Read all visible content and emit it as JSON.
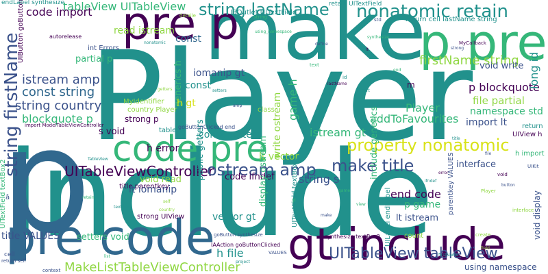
{
  "palette": {
    "purple": "#440154",
    "indigo": "#3b528b",
    "blue": "#31688e",
    "teal": "#21918c",
    "green": "#35b779",
    "lime": "#90d743",
    "yellow": "#d8e219"
  },
  "words": [
    {
      "text": "Player",
      "color": "teal"
    },
    {
      "text": "include",
      "color": "teal"
    },
    {
      "text": "make",
      "color": "teal"
    },
    {
      "text": "p",
      "color": "blue"
    },
    {
      "text": "pre p",
      "color": "purple"
    },
    {
      "text": "p pre",
      "color": "green"
    },
    {
      "text": "code pre",
      "color": "green"
    },
    {
      "text": "pre code",
      "color": "blue"
    },
    {
      "text": "gt include",
      "color": "purple"
    },
    {
      "text": "nonatomic retain",
      "color": "teal"
    },
    {
      "text": "string lastName",
      "color": "teal"
    },
    {
      "text": "tableView UITableView",
      "color": "green"
    },
    {
      "text": "property nonatomic",
      "color": "yellow"
    },
    {
      "text": "UITableView tableView",
      "color": "indigo"
    },
    {
      "text": "MakeListTableViewController",
      "color": "lime"
    },
    {
      "text": "UITableViewController",
      "color": "purple"
    },
    {
      "text": "ostream amp",
      "color": "indigo"
    },
    {
      "text": "make title",
      "color": "indigo"
    },
    {
      "text": "firstName string",
      "color": "lime"
    },
    {
      "text": "string firstName",
      "color": "indigo"
    },
    {
      "text": "istream amp",
      "color": "indigo"
    },
    {
      "text": "const string",
      "color": "blue"
    },
    {
      "text": "string country",
      "color": "indigo"
    },
    {
      "text": "blockquote p",
      "color": "green"
    },
    {
      "text": "p blockquote",
      "color": "purple"
    },
    {
      "text": "code import",
      "color": "purple"
    },
    {
      "text": "read istream",
      "color": "lime"
    },
    {
      "text": "void write",
      "color": "indigo"
    },
    {
      "text": "long id",
      "color": "teal"
    },
    {
      "text": "file partial",
      "color": "lime"
    },
    {
      "text": "namespace std",
      "color": "green"
    },
    {
      "text": "Player",
      "color": "green"
    },
    {
      "text": "import lt",
      "color": "indigo"
    },
    {
      "text": "addToFavourites",
      "color": "green"
    },
    {
      "text": "istream gt",
      "color": "green"
    },
    {
      "text": "game h",
      "color": "green"
    },
    {
      "text": "write ostream",
      "color": "lime"
    },
    {
      "text": "const",
      "color": "blue"
    },
    {
      "text": "const",
      "color": "teal"
    },
    {
      "text": "iomanip gt",
      "color": "indigo"
    },
    {
      "text": "generics h",
      "color": "green"
    },
    {
      "text": "h error",
      "color": "purple"
    },
    {
      "text": "h gt",
      "color": "yellow"
    },
    {
      "text": "const setters",
      "color": "teal"
    },
    {
      "text": "lt vector",
      "color": "lime"
    },
    {
      "text": "code ifndef",
      "color": "purple"
    },
    {
      "text": "string s",
      "color": "indigo"
    },
    {
      "text": "end code",
      "color": "purple"
    },
    {
      "text": "p game",
      "color": "green"
    },
    {
      "text": "lt istream",
      "color": "indigo"
    },
    {
      "text": "include generics",
      "color": "green"
    },
    {
      "text": "display ostream",
      "color": "green"
    },
    {
      "text": "public getters",
      "color": "teal"
    },
    {
      "text": "lt iomanip",
      "color": "indigo"
    },
    {
      "text": "void read",
      "color": "lime"
    },
    {
      "text": "strong UIView",
      "color": "purple"
    },
    {
      "text": "setters void",
      "color": "green"
    },
    {
      "text": "vector gt",
      "color": "teal"
    },
    {
      "text": "h file",
      "color": "teal"
    },
    {
      "text": "title VALUES",
      "color": "indigo"
    },
    {
      "text": "interface",
      "color": "indigo"
    },
    {
      "text": "parentkey VALUES",
      "color": "indigo"
    },
    {
      "text": "void display",
      "color": "indigo"
    },
    {
      "text": "using namespace",
      "color": "indigo"
    },
    {
      "text": "partial p",
      "color": "green"
    },
    {
      "text": "int Errors",
      "color": "indigo"
    },
    {
      "text": "MyIdentifier",
      "color": "lime"
    },
    {
      "text": "country Player",
      "color": "lime"
    },
    {
      "text": "strong p",
      "color": "purple"
    },
    {
      "text": "s void",
      "color": "purple"
    },
    {
      "text": "UITextField textBox2",
      "color": "green"
    },
    {
      "text": "UITextField textBox1",
      "color": "teal"
    },
    {
      "text": "UILabel endLabel",
      "color": "teal"
    },
    {
      "text": "UIButton goButton",
      "color": "purple"
    },
    {
      "text": "IBOutlet UITextField",
      "color": "teal"
    },
    {
      "text": "retain UITextField",
      "color": "teal"
    },
    {
      "text": "return cell lastName string",
      "color": "teal"
    },
    {
      "text": "endLabel synthesize",
      "color": "teal"
    },
    {
      "text": "return",
      "color": "teal"
    },
    {
      "text": "UIView h",
      "color": "purple"
    },
    {
      "text": "h import",
      "color": "green"
    },
    {
      "text": "count",
      "color": "lime"
    },
    {
      "text": "class",
      "color": "lime"
    },
    {
      "text": "table",
      "color": "teal"
    },
    {
      "text": "cell",
      "color": "indigo"
    },
    {
      "text": "m",
      "color": "purple"
    },
    {
      "text": "â",
      "color": "indigo"
    },
    {
      "text": "title parentkey",
      "color": "purple"
    },
    {
      "text": "synthesize textBox2",
      "color": "purple"
    },
    {
      "text": "goButtonClicked end",
      "color": "indigo"
    },
    {
      "text": "IAAction goButtonClicked",
      "color": "purple"
    },
    {
      "text": "autorelease",
      "color": "purple"
    },
    {
      "text": "import ModelTableViewController",
      "color": "purple"
    },
    {
      "text": "MyCallback",
      "color": "purple"
    },
    {
      "text": "text",
      "color": "green"
    },
    {
      "text": "using_namespace",
      "color": "green"
    },
    {
      "text": "context",
      "color": "indigo"
    },
    {
      "text": "VALUES",
      "color": "indigo"
    },
    {
      "text": "return self",
      "color": "indigo"
    },
    {
      "text": "create",
      "color": "lime"
    },
    {
      "text": "interface",
      "color": "lime"
    },
    {
      "text": "Player",
      "color": "lime"
    },
    {
      "text": "void",
      "color": "purple"
    },
    {
      "text": "goButton synthesize",
      "color": "indigo"
    },
    {
      "text": "UIKit",
      "color": "indigo"
    },
    {
      "text": "detaile",
      "color": "lime"
    },
    {
      "text": "string",
      "color": "green"
    },
    {
      "text": "std",
      "color": "indigo"
    },
    {
      "text": "id",
      "color": "teal"
    },
    {
      "text": "project",
      "color": "teal"
    },
    {
      "text": "cell",
      "color": "teal"
    },
    {
      "text": "TableView",
      "color": "teal"
    },
    {
      "text": "define",
      "color": "indigo"
    },
    {
      "text": "import",
      "color": "teal"
    },
    {
      "text": "end",
      "color": "green"
    },
    {
      "text": "nonatomic",
      "color": "teal"
    },
    {
      "text": "synthesize",
      "color": "green"
    },
    {
      "text": "ifndef",
      "color": "teal"
    },
    {
      "text": "amp",
      "color": "indigo"
    },
    {
      "text": "gt",
      "color": "green"
    },
    {
      "text": "self",
      "color": "lime"
    },
    {
      "text": "lt",
      "color": "purple"
    },
    {
      "text": "getters",
      "color": "lime"
    },
    {
      "text": "setters",
      "color": "teal"
    },
    {
      "text": "strong",
      "color": "indigo"
    },
    {
      "text": "string",
      "color": "teal"
    },
    {
      "text": "retain",
      "color": "green"
    },
    {
      "text": "lastName",
      "color": "purple"
    },
    {
      "text": "firstName",
      "color": "teal"
    },
    {
      "text": "country",
      "color": "lime"
    },
    {
      "text": "textBox",
      "color": "teal"
    },
    {
      "text": "file",
      "color": "indigo"
    },
    {
      "text": "game",
      "color": "green"
    },
    {
      "text": "title",
      "color": "teal"
    },
    {
      "text": "make",
      "color": "indigo"
    },
    {
      "text": "list",
      "color": "green"
    },
    {
      "text": "error",
      "color": "purple"
    },
    {
      "text": "label",
      "color": "teal"
    },
    {
      "text": "view",
      "color": "green"
    },
    {
      "text": "button",
      "color": "indigo"
    },
    {
      "text": "field",
      "color": "lime"
    }
  ]
}
